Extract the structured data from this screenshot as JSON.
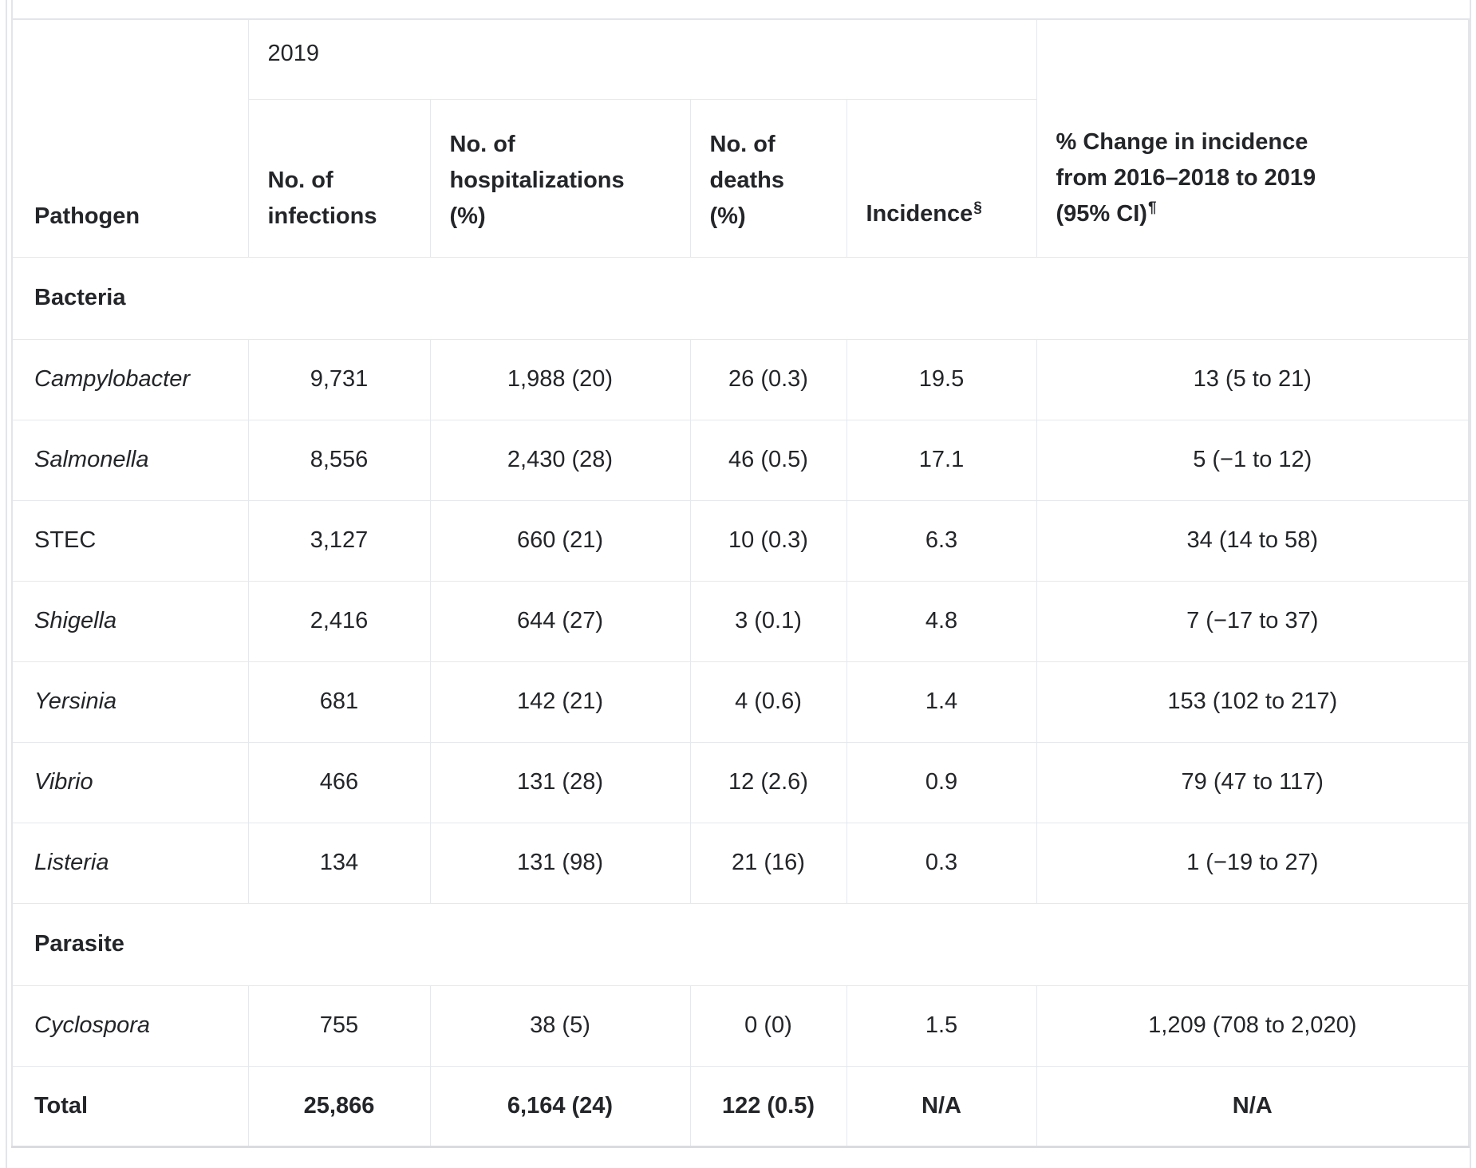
{
  "colors": {
    "text": "#232528",
    "border": "#e6e8ec",
    "border_outer": "#e3e5e9",
    "border_strong": "#d9dbdf",
    "background": "#ffffff"
  },
  "table": {
    "col_headers": {
      "pathogen": "Pathogen",
      "year_group": "2019",
      "infections": "No. of infections",
      "hospitalizations": "No. of hospitalizations (%)",
      "deaths": "No. of deaths (%)",
      "incidence": "Incidence",
      "incidence_footnote_mark": "§",
      "pct_change_main": "% Change in incidence from 2016–2018 to 2019 (95%",
      "pct_change_tail": "CI)",
      "pct_change_footnote_mark": "¶"
    },
    "rows": [
      {
        "type": "section",
        "label": "Bacteria"
      },
      {
        "type": "data",
        "pathogen": "Campylobacter",
        "italic": true,
        "infections": "9,731",
        "hospitalizations": "1,988 (20)",
        "deaths": "26 (0.3)",
        "incidence": "19.5",
        "pct_change": "13 (5 to 21)"
      },
      {
        "type": "data",
        "pathogen": "Salmonella",
        "italic": true,
        "infections": "8,556",
        "hospitalizations": "2,430 (28)",
        "deaths": "46 (0.5)",
        "incidence": "17.1",
        "pct_change": "5 (−1 to 12)"
      },
      {
        "type": "data",
        "pathogen": "STEC",
        "italic": false,
        "infections": "3,127",
        "hospitalizations": "660 (21)",
        "deaths": "10 (0.3)",
        "incidence": "6.3",
        "pct_change": "34 (14 to 58)"
      },
      {
        "type": "data",
        "pathogen": "Shigella",
        "italic": true,
        "infections": "2,416",
        "hospitalizations": "644 (27)",
        "deaths": "3 (0.1)",
        "incidence": "4.8",
        "pct_change": "7 (−17 to 37)"
      },
      {
        "type": "data",
        "pathogen": "Yersinia",
        "italic": true,
        "infections": "681",
        "hospitalizations": "142 (21)",
        "deaths": "4 (0.6)",
        "incidence": "1.4",
        "pct_change": "153 (102 to 217)"
      },
      {
        "type": "data",
        "pathogen": "Vibrio",
        "italic": true,
        "infections": "466",
        "hospitalizations": "131 (28)",
        "deaths": "12 (2.6)",
        "incidence": "0.9",
        "pct_change": "79 (47 to 117)"
      },
      {
        "type": "data",
        "pathogen": "Listeria",
        "italic": true,
        "infections": "134",
        "hospitalizations": "131 (98)",
        "deaths": "21 (16)",
        "incidence": "0.3",
        "pct_change": "1 (−19 to 27)"
      },
      {
        "type": "section",
        "label": "Parasite"
      },
      {
        "type": "data",
        "pathogen": "Cyclospora",
        "italic": true,
        "infections": "755",
        "hospitalizations": "38 (5)",
        "deaths": "0 (0)",
        "incidence": "1.5",
        "pct_change": "1,209 (708 to 2,020)"
      },
      {
        "type": "data",
        "pathogen": "Total",
        "italic": false,
        "emphasis": true,
        "infections": "25,866",
        "hospitalizations": "6,164 (24)",
        "deaths": "122 (0.5)",
        "incidence": "N/A",
        "pct_change": "N/A"
      }
    ]
  }
}
